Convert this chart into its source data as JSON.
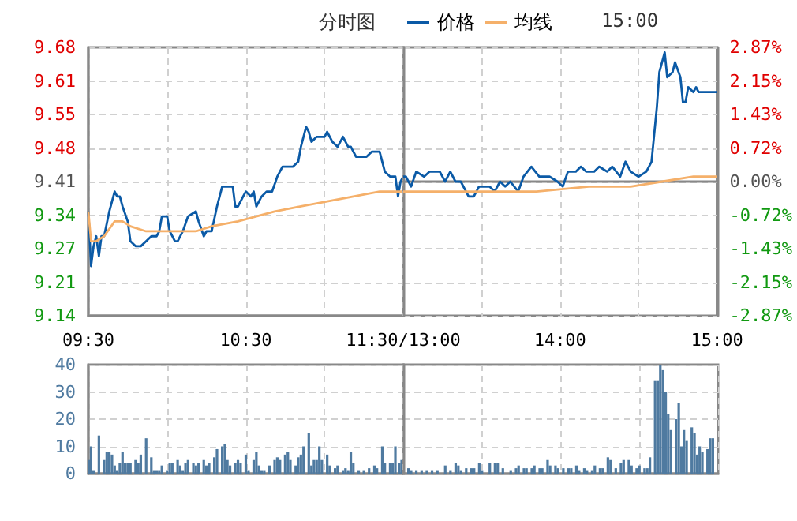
{
  "chart_data": [
    {
      "type": "line",
      "title": "分时图",
      "annotations": [
        "15:00"
      ],
      "legend": "top",
      "grid": true,
      "marker": "none",
      "tick_labels": "xy",
      "xlim": [
        9.5,
        11.5
      ],
      "xticks": [
        {
          "value": 9.5,
          "label": "09:30"
        },
        {
          "value": 10,
          "label": null
        },
        {
          "value": 10.5,
          "label": "10:30"
        },
        {
          "value": 11,
          "label": null
        },
        {
          "value": 11.5,
          "label": "11:30/13:00"
        }
      ],
      "ylim": [
        9.14,
        9.68
      ],
      "yticks": [
        9.14,
        {
          "value": 9.2075,
          "label": "9.21"
        },
        {
          "value": 9.275,
          "label": "9.27"
        },
        {
          "value": 9.3425,
          "label": "9.34"
        },
        9.41,
        {
          "value": 9.4775,
          "label": "9.48"
        },
        {
          "value": 9.545,
          "label": "9.55"
        },
        {
          "value": 9.6125,
          "label": "9.61"
        },
        9.68
      ],
      "series": [
        {
          "name": "价格",
          "color": "#0b5aa6",
          "x": [
            9.5,
            9.517,
            9.533,
            9.55,
            9.567,
            9.583,
            9.6,
            9.633,
            9.667,
            9.683,
            9.7,
            9.717,
            9.75,
            9.767,
            9.8,
            9.833,
            9.867,
            9.9,
            9.933,
            9.95,
            9.967,
            10,
            10.017,
            10.05,
            10.067,
            10.1,
            10.133,
            10.183,
            10.2,
            10.233,
            10.25,
            10.283,
            10.317,
            10.35,
            10.383,
            10.417,
            10.433,
            10.45,
            10.483,
            10.5,
            10.533,
            10.55,
            10.567,
            10.6,
            10.633,
            10.667,
            10.7,
            10.733,
            10.8,
            10.833,
            10.85,
            10.883,
            10.9,
            10.917,
            10.95,
            11,
            11.017,
            11.05,
            11.083,
            11.117,
            11.15,
            11.167,
            11.2,
            11.25,
            11.267,
            11.3,
            11.35,
            11.383,
            11.417,
            11.45,
            11.467,
            11.483,
            11.5
          ],
          "values": [
            9.35,
            9.24,
            9.28,
            9.3,
            9.26,
            9.3,
            9.3,
            9.35,
            9.39,
            9.38,
            9.38,
            9.36,
            9.33,
            9.29,
            9.28,
            9.28,
            9.29,
            9.3,
            9.3,
            9.31,
            9.34,
            9.34,
            9.31,
            9.29,
            9.29,
            9.31,
            9.34,
            9.35,
            9.33,
            9.3,
            9.31,
            9.31,
            9.36,
            9.4,
            9.4,
            9.4,
            9.36,
            9.36,
            9.38,
            9.39,
            9.38,
            9.39,
            9.36,
            9.38,
            9.39,
            9.39,
            9.42,
            9.44,
            9.44,
            9.45,
            9.48,
            9.52,
            9.51,
            9.49,
            9.5,
            9.5,
            9.51,
            9.49,
            9.48,
            9.5,
            9.48,
            9.48,
            9.46,
            9.46,
            9.46,
            9.47,
            9.47,
            9.43,
            9.42,
            9.42,
            9.38,
            9.41,
            9.42
          ]
        },
        {
          "name": "均线",
          "color": "#f5b06a",
          "x": [
            9.5,
            9.517,
            9.55,
            9.6,
            9.667,
            9.717,
            9.767,
            9.867,
            10.183,
            10.283,
            10.45,
            10.683,
            10.85,
            11.017,
            11.183,
            11.35,
            11.5
          ],
          "values": [
            9.35,
            9.29,
            9.29,
            9.3,
            9.33,
            9.33,
            9.32,
            9.31,
            9.31,
            9.32,
            9.33,
            9.35,
            9.36,
            9.37,
            9.38,
            9.39,
            9.39
          ]
        }
      ]
    },
    {
      "type": "line",
      "grid": true,
      "marker": "none",
      "tick_labels": "x",
      "xlim": [
        13,
        15
      ],
      "xticks": [
        {
          "value": 13,
          "label": null
        },
        {
          "value": 13.5,
          "label": null
        },
        {
          "value": 14,
          "label": "14:00"
        },
        {
          "value": 14.5,
          "label": null
        },
        {
          "value": 15,
          "label": "15:00"
        }
      ],
      "ylim": [
        9.14,
        9.68
      ],
      "yticks": [
        9.14,
        9.2075,
        9.275,
        9.3425,
        9.41,
        9.4775,
        9.545,
        9.6125,
        9.68
      ],
      "y2lim": [
        -2.87,
        2.87
      ],
      "y2ticks": [
        {
          "value": -2.87,
          "label": "-2.87%"
        },
        {
          "value": -2.1525,
          "label": "-2.15%"
        },
        {
          "value": -1.435,
          "label": "-1.43%"
        },
        {
          "value": -0.7175,
          "label": "-0.72%"
        },
        {
          "value": 0,
          "label": "0.00%"
        },
        {
          "value": 0.7175,
          "label": "0.72%"
        },
        {
          "value": 1.435,
          "label": "1.43%"
        },
        {
          "value": 2.1525,
          "label": "2.15%"
        },
        {
          "value": 2.87,
          "label": "2.87%"
        }
      ],
      "series": [
        {
          "color": "#0b5aa6",
          "x": [
            13,
            13.017,
            13.05,
            13.083,
            13.133,
            13.167,
            13.233,
            13.267,
            13.3,
            13.333,
            13.367,
            13.417,
            13.45,
            13.483,
            13.55,
            13.583,
            13.617,
            13.65,
            13.683,
            13.733,
            13.767,
            13.817,
            13.867,
            13.933,
            13.983,
            14.017,
            14.05,
            14.1,
            14.133,
            14.167,
            14.217,
            14.25,
            14.3,
            14.333,
            14.383,
            14.417,
            14.45,
            14.5,
            14.55,
            14.583,
            14.617,
            14.633,
            14.667,
            14.683,
            14.717,
            14.733,
            14.767,
            14.783,
            14.8,
            14.817,
            14.85,
            14.867,
            14.883,
            14.917,
            15
          ],
          "values": [
            9.42,
            9.42,
            9.4,
            9.43,
            9.42,
            9.43,
            9.43,
            9.41,
            9.43,
            9.41,
            9.41,
            9.38,
            9.38,
            9.4,
            9.4,
            9.39,
            9.41,
            9.4,
            9.41,
            9.39,
            9.42,
            9.44,
            9.42,
            9.42,
            9.41,
            9.4,
            9.43,
            9.43,
            9.44,
            9.43,
            9.43,
            9.44,
            9.43,
            9.44,
            9.42,
            9.45,
            9.43,
            9.42,
            9.43,
            9.45,
            9.56,
            9.63,
            9.67,
            9.62,
            9.63,
            9.65,
            9.62,
            9.57,
            9.57,
            9.6,
            9.59,
            9.6,
            9.59,
            9.59,
            9.59
          ]
        },
        {
          "color": "#f5b06a",
          "x": [
            13,
            13.183,
            13.517,
            13.85,
            14.183,
            14.45,
            14.65,
            14.85,
            15
          ],
          "values": [
            9.39,
            9.39,
            9.39,
            9.39,
            9.4,
            9.4,
            9.41,
            9.42,
            9.42
          ]
        }
      ]
    },
    {
      "type": "bar",
      "color": "#4f7aa0",
      "grid": true,
      "tick_labels": "y",
      "xlim": [
        9.5,
        11.5
      ],
      "xticks": [
        9.5,
        10,
        10.5,
        11,
        11.5
      ],
      "ylim": [
        0,
        40
      ],
      "yticks": [
        0,
        10,
        20,
        30,
        40
      ],
      "x": [
        9.508,
        9.517,
        9.533,
        9.567,
        9.6,
        9.617,
        9.633,
        9.65,
        9.667,
        9.683,
        9.7,
        9.717,
        9.733,
        9.75,
        9.767,
        9.8,
        9.817,
        9.833,
        9.867,
        9.9,
        9.917,
        9.933,
        9.95,
        9.967,
        10,
        10.017,
        10.033,
        10.067,
        10.083,
        10.1,
        10.117,
        10.133,
        10.167,
        10.183,
        10.2,
        10.233,
        10.25,
        10.267,
        10.3,
        10.317,
        10.35,
        10.367,
        10.383,
        10.4,
        10.433,
        10.45,
        10.467,
        10.5,
        10.517,
        10.55,
        10.567,
        10.583,
        10.6,
        10.617,
        10.65,
        10.683,
        10.7,
        10.717,
        10.75,
        10.767,
        10.783,
        10.817,
        10.833,
        10.85,
        10.867,
        10.9,
        10.917,
        10.933,
        10.95,
        10.967,
        10.983,
        11.017,
        11.033,
        11.067,
        11.083,
        11.117,
        11.133,
        11.15,
        11.167,
        11.183,
        11.217,
        11.25,
        11.283,
        11.317,
        11.333,
        11.367,
        11.383,
        11.417,
        11.433,
        11.45,
        11.475,
        11.49
      ],
      "values": [
        5,
        10,
        1,
        14,
        5,
        8,
        8,
        7,
        3,
        1,
        4,
        8,
        4,
        4,
        4,
        5,
        4,
        7,
        13,
        6,
        1,
        1,
        1,
        3,
        1,
        4,
        4,
        5,
        3,
        1,
        4,
        5,
        4,
        3,
        4,
        5,
        3,
        4,
        6,
        9,
        10,
        11,
        5,
        3,
        4,
        5,
        4,
        7,
        1,
        5,
        8,
        3,
        1,
        1,
        3,
        5,
        6,
        5,
        7,
        8,
        5,
        3,
        6,
        7,
        10,
        15,
        3,
        5,
        5,
        10,
        5,
        7,
        3,
        2,
        3,
        1,
        2,
        1,
        8,
        4,
        1,
        1,
        2,
        3,
        2,
        10,
        4,
        4,
        4,
        10,
        4,
        5
      ]
    },
    {
      "type": "bar",
      "color": "#4f7aa0",
      "grid": true,
      "tick_labels": false,
      "xlim": [
        13,
        15
      ],
      "xticks": [
        13,
        13.5,
        14,
        14.5,
        15
      ],
      "ylim": [
        0,
        40
      ],
      "yticks": [
        0,
        10,
        20,
        30,
        40
      ],
      "x": [
        13.033,
        13.05,
        13.083,
        13.117,
        13.15,
        13.183,
        13.217,
        13.267,
        13.3,
        13.333,
        13.35,
        13.367,
        13.4,
        13.433,
        13.45,
        13.483,
        13.5,
        13.55,
        13.583,
        13.6,
        13.633,
        13.683,
        13.717,
        13.733,
        13.767,
        13.783,
        13.817,
        13.833,
        13.867,
        13.883,
        13.917,
        13.933,
        13.967,
        13.983,
        14.017,
        14.05,
        14.067,
        14.1,
        14.117,
        14.15,
        14.167,
        14.2,
        14.217,
        14.25,
        14.267,
        14.3,
        14.317,
        14.35,
        14.383,
        14.4,
        14.433,
        14.45,
        14.483,
        14.5,
        14.533,
        14.55,
        14.567,
        14.6,
        14.617,
        14.633,
        14.65,
        14.667,
        14.683,
        14.7,
        14.733,
        14.75,
        14.767,
        14.783,
        14.8,
        14.833,
        14.85,
        14.867,
        14.883,
        14.9,
        14.933,
        14.95,
        14.967
      ],
      "values": [
        2,
        1,
        1,
        1,
        1,
        1,
        1,
        3,
        1,
        4,
        3,
        1,
        2,
        2,
        2,
        4,
        1,
        4,
        4,
        4,
        2,
        1,
        2,
        3,
        2,
        2,
        2,
        3,
        2,
        2,
        5,
        3,
        3,
        2,
        2,
        2,
        2,
        3,
        1,
        2,
        1,
        1,
        3,
        2,
        2,
        6,
        5,
        2,
        4,
        5,
        5,
        3,
        2,
        3,
        2,
        2,
        6,
        34,
        34,
        40,
        38,
        30,
        22,
        16,
        20,
        26,
        10,
        16,
        12,
        17,
        15,
        7,
        10,
        8,
        9,
        13,
        13
      ]
    }
  ]
}
